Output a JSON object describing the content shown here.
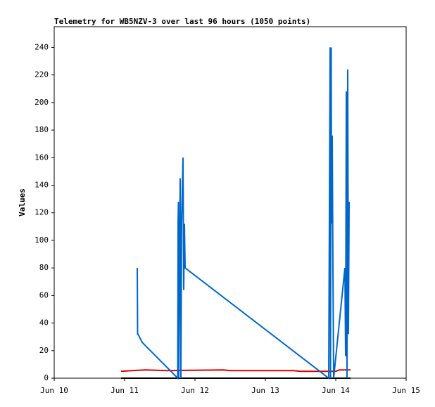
{
  "chart_data": {
    "type": "line",
    "title": "Telemetry for WB5NZV-3 over last 96 hours (1050 points)",
    "y_label": "Values",
    "xlim": [
      10,
      15
    ],
    "xticks": [
      {
        "value": 10,
        "label": "Jun 10"
      },
      {
        "value": 11,
        "label": "Jun 11"
      },
      {
        "value": 12,
        "label": "Jun 12"
      },
      {
        "value": 13,
        "label": "Jun 13"
      },
      {
        "value": 14,
        "label": "Jun 14"
      },
      {
        "value": 15,
        "label": "Jun 15"
      }
    ],
    "ylim": [
      0,
      255
    ],
    "yticks": [
      0,
      20,
      40,
      60,
      80,
      100,
      120,
      140,
      160,
      180,
      200,
      220,
      240
    ],
    "grid": false,
    "series": [
      {
        "color": "#000000",
        "x": [
          10.95,
          14.21
        ],
        "values": [
          0,
          0
        ]
      },
      {
        "color": "#e00000",
        "x": [
          10.95,
          11.1,
          11.3,
          11.6,
          12.4,
          12.5,
          13.4,
          13.5,
          14.0,
          14.05,
          14.21
        ],
        "values": [
          5,
          5.5,
          6,
          5.5,
          6,
          5.5,
          5.5,
          5,
          5,
          6,
          6
        ]
      },
      {
        "color": "#0066cc",
        "x": [
          11.18,
          11.185,
          11.19,
          11.25,
          11.755,
          11.76,
          11.765,
          11.77,
          11.79,
          11.8,
          11.81,
          11.83,
          11.84,
          11.85,
          11.86,
          13.9,
          13.92,
          13.925,
          13.935,
          13.94,
          13.95,
          13.96,
          13.97,
          14.13,
          14.14,
          14.15,
          14.16,
          14.17,
          14.18,
          14.19
        ],
        "values": [
          80,
          32,
          32,
          26,
          0,
          112,
          128,
          0,
          145,
          0,
          112,
          160,
          64,
          112,
          80,
          0,
          240,
          0,
          240,
          112,
          176,
          80,
          0,
          80,
          16,
          208,
          0,
          224,
          32,
          128
        ]
      }
    ]
  }
}
